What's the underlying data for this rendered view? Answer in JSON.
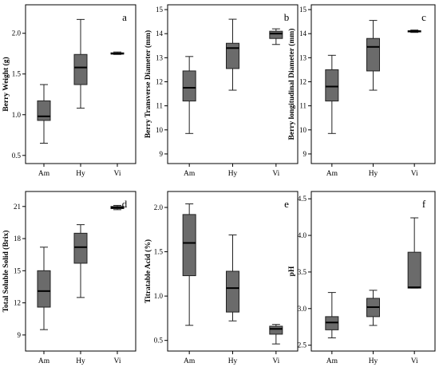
{
  "chart_data": [
    {
      "type": "box",
      "panel_label": "a",
      "ylabel": "Berry Weight (g)",
      "ylim": [
        0.4,
        2.35
      ],
      "yticks": [
        "0.5",
        "1.0",
        "1.5",
        "2.0"
      ],
      "ytick_values": [
        0.5,
        1.0,
        1.5,
        2.0
      ],
      "categories": [
        "Am",
        "Hy",
        "Vi"
      ],
      "boxes": [
        {
          "min": 0.65,
          "q1": 0.93,
          "median": 0.98,
          "q3": 1.17,
          "max": 1.37
        },
        {
          "min": 1.08,
          "q1": 1.37,
          "median": 1.58,
          "q3": 1.74,
          "max": 2.17
        },
        {
          "min": 1.74,
          "q1": 1.745,
          "median": 1.75,
          "q3": 1.76,
          "max": 1.77
        }
      ]
    },
    {
      "type": "box",
      "panel_label": "b",
      "ylabel": "Berry Transverse Diameter (mm)",
      "ylim": [
        8.6,
        15.2
      ],
      "yticks": [
        "9",
        "10",
        "11",
        "12",
        "13",
        "14",
        "15"
      ],
      "ytick_values": [
        9,
        10,
        11,
        12,
        13,
        14,
        15
      ],
      "categories": [
        "Am",
        "Hy",
        "Vi"
      ],
      "boxes": [
        {
          "min": 9.85,
          "q1": 11.2,
          "median": 11.75,
          "q3": 12.45,
          "max": 13.05
        },
        {
          "min": 11.65,
          "q1": 12.55,
          "median": 13.4,
          "q3": 13.6,
          "max": 14.6
        },
        {
          "min": 13.55,
          "q1": 13.8,
          "median": 14.0,
          "q3": 14.1,
          "max": 14.2
        }
      ]
    },
    {
      "type": "box",
      "panel_label": "c",
      "ylabel": "Berry longitudinal Diameter (mm)",
      "ylim": [
        8.6,
        15.2
      ],
      "yticks": [
        "9",
        "10",
        "11",
        "12",
        "13",
        "14",
        "15"
      ],
      "ytick_values": [
        9,
        10,
        11,
        12,
        13,
        14,
        15
      ],
      "categories": [
        "Am",
        "Hy",
        "Vi"
      ],
      "boxes": [
        {
          "min": 9.85,
          "q1": 11.2,
          "median": 11.8,
          "q3": 12.5,
          "max": 13.1
        },
        {
          "min": 11.65,
          "q1": 12.45,
          "median": 13.45,
          "q3": 13.8,
          "max": 14.55
        },
        {
          "min": 14.05,
          "q1": 14.08,
          "median": 14.1,
          "q3": 14.12,
          "max": 14.15
        }
      ]
    },
    {
      "type": "box",
      "panel_label": "d",
      "ylabel": "Total Soluble Solid (Brix)",
      "ylim": [
        7.5,
        22.4
      ],
      "yticks": [
        "9",
        "12",
        "15",
        "18",
        "21"
      ],
      "ytick_values": [
        9,
        12,
        15,
        18,
        21
      ],
      "categories": [
        "Am",
        "Hy",
        "Vi"
      ],
      "boxes": [
        {
          "min": 9.5,
          "q1": 11.6,
          "median": 13.1,
          "q3": 15.0,
          "max": 17.2
        },
        {
          "min": 12.5,
          "q1": 15.7,
          "median": 17.2,
          "q3": 18.5,
          "max": 19.3
        },
        {
          "min": 20.7,
          "q1": 20.8,
          "median": 20.9,
          "q3": 21.0,
          "max": 21.1
        }
      ]
    },
    {
      "type": "box",
      "panel_label": "e",
      "ylabel": "Titratable Acid (%)",
      "ylim": [
        0.38,
        2.18
      ],
      "yticks": [
        "0.5",
        "1.0",
        "1.5",
        "2.0"
      ],
      "ytick_values": [
        0.5,
        1.0,
        1.5,
        2.0
      ],
      "categories": [
        "Am",
        "Hy",
        "Vi"
      ],
      "boxes": [
        {
          "min": 0.67,
          "q1": 1.23,
          "median": 1.6,
          "q3": 1.92,
          "max": 2.04
        },
        {
          "min": 0.72,
          "q1": 0.82,
          "median": 1.09,
          "q3": 1.28,
          "max": 1.69
        },
        {
          "min": 0.46,
          "q1": 0.57,
          "median": 0.63,
          "q3": 0.66,
          "max": 0.68
        }
      ]
    },
    {
      "type": "box",
      "panel_label": "f",
      "ylabel": "pH",
      "ylim": [
        2.42,
        4.6
      ],
      "yticks": [
        "2.5",
        "3.0",
        "3.5",
        "4.0",
        "4.5"
      ],
      "ytick_values": [
        2.5,
        3.0,
        3.5,
        4.0,
        4.5
      ],
      "categories": [
        "Am",
        "Hy",
        "Vi"
      ],
      "boxes": [
        {
          "min": 2.6,
          "q1": 2.71,
          "median": 2.81,
          "q3": 2.89,
          "max": 3.22
        },
        {
          "min": 2.77,
          "q1": 2.89,
          "median": 3.02,
          "q3": 3.14,
          "max": 3.25
        },
        {
          "min": 3.28,
          "q1": 3.28,
          "median": 3.29,
          "q3": 3.77,
          "max": 4.24
        }
      ]
    }
  ]
}
